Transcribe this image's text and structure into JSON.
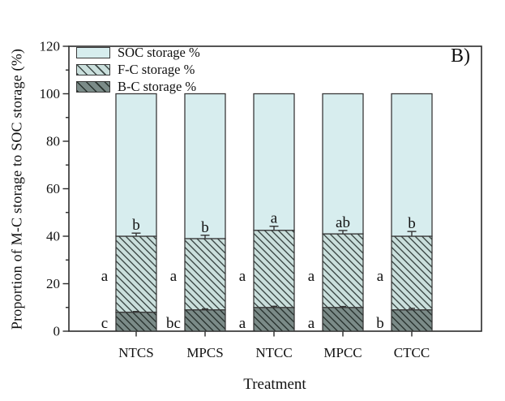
{
  "figure": {
    "panel_label": "B)",
    "background": "#ffffff"
  },
  "chart_data": {
    "type": "bar",
    "stacked": true,
    "title": "",
    "xlabel": "Treatment",
    "ylabel": "Proportion of M-C storage to SOC storage (%)",
    "ylim": [
      0,
      120
    ],
    "yticks": [
      0,
      20,
      40,
      60,
      80,
      100,
      120
    ],
    "yminor_step": 10,
    "grid": false,
    "legend_position": "top-left-inside",
    "categories": [
      "NTCS",
      "MPCS",
      "NTCC",
      "MPCC",
      "CTCC"
    ],
    "series": [
      {
        "name": "B-C storage %",
        "values": [
          8,
          9,
          10,
          10,
          9
        ],
        "fill": "#7b8b88",
        "hatch": true,
        "hatch_color": "#29332f"
      },
      {
        "name": "F-C storage %",
        "values": [
          32,
          30,
          32.5,
          31,
          31
        ],
        "fill": "#cadfdc",
        "hatch": true,
        "hatch_color": "#3c4846"
      },
      {
        "name": "SOC storage %",
        "values": [
          60,
          61,
          57.5,
          59,
          60
        ],
        "fill": "#d7edee",
        "hatch": false,
        "hatch_color": ""
      }
    ],
    "bar_totals": [
      100,
      100,
      100,
      100,
      100
    ],
    "error_bars": {
      "fc_top_upper": [
        1.3,
        1.4,
        1.7,
        1.4,
        2.0
      ],
      "bc_top_upper": [
        0.3,
        0.4,
        0.5,
        0.4,
        0.6
      ]
    },
    "sig_letters": {
      "top": [
        "b",
        "b",
        "a",
        "ab",
        "b"
      ],
      "middle": [
        "a",
        "a",
        "a",
        "a",
        "a"
      ],
      "bottom": [
        "c",
        "bc",
        "a",
        "a",
        "b"
      ]
    },
    "legend": [
      "SOC storage %",
      "F-C storage %",
      "B-C storage %"
    ]
  },
  "colors": {
    "axis": "#2b2b2b",
    "text": "#111111",
    "bar_border": "#3a3a3a",
    "error_bar": "#333333",
    "plot_bg": "#ffffff"
  }
}
